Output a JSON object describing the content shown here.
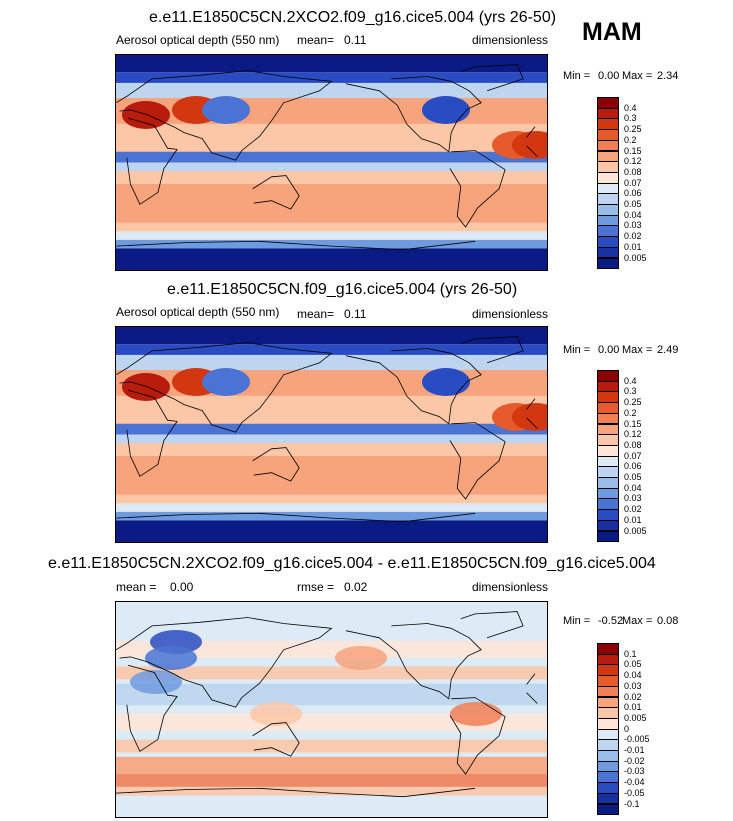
{
  "season": "MAM",
  "chart_data": [
    {
      "type": "heatmap",
      "title": "e.e11.E1850C5CN.2XCO2.f09_g16.cice5.004 (yrs 26-50)",
      "left_label": "Aerosol optical depth (550 nm)",
      "mean_label": "mean=",
      "mean_value": "0.11",
      "units": "dimensionless",
      "min_label": "Min =",
      "min_value": "0.00",
      "max_label": "Max =",
      "max_value": "2.34",
      "levels": [
        "0.4",
        "0.3",
        "0.25",
        "0.2",
        "0.15",
        "0.12",
        "0.08",
        "0.07",
        "0.06",
        "0.05",
        "0.04",
        "0.03",
        "0.02",
        "0.01",
        "0.005"
      ],
      "colors": [
        "#8b0000",
        "#b81c0c",
        "#d3370f",
        "#e65a2c",
        "#f07f55",
        "#f7a37c",
        "#fbc7a7",
        "#fde6d8",
        "#dcebf6",
        "#bdd5f0",
        "#98bde9",
        "#6e9be0",
        "#4a73d4",
        "#2a4cc2",
        "#1731a5",
        "#0a1a85"
      ]
    },
    {
      "type": "heatmap",
      "title": "e.e11.E1850C5CN.f09_g16.cice5.004 (yrs 26-50)",
      "left_label": "Aerosol optical depth (550 nm)",
      "mean_label": "mean=",
      "mean_value": "0.11",
      "units": "dimensionless",
      "min_label": "Min =",
      "min_value": "0.00",
      "max_label": "Max =",
      "max_value": "2.49",
      "levels": [
        "0.4",
        "0.3",
        "0.25",
        "0.2",
        "0.15",
        "0.12",
        "0.08",
        "0.07",
        "0.06",
        "0.05",
        "0.04",
        "0.03",
        "0.02",
        "0.01",
        "0.005"
      ],
      "colors": [
        "#8b0000",
        "#b81c0c",
        "#d3370f",
        "#e65a2c",
        "#f07f55",
        "#f7a37c",
        "#fbc7a7",
        "#fde6d8",
        "#dcebf6",
        "#bdd5f0",
        "#98bde9",
        "#6e9be0",
        "#4a73d4",
        "#2a4cc2",
        "#1731a5",
        "#0a1a85"
      ]
    },
    {
      "type": "heatmap",
      "title": "e.e11.E1850C5CN.2XCO2.f09_g16.cice5.004 - e.e11.E1850C5CN.f09_g16.cice5.004",
      "left_label": "mean =",
      "mean_value": "0.00",
      "rmse_label": "rmse =",
      "rmse_value": "0.02",
      "units": "dimensionless",
      "min_label": "Min =",
      "min_value": "-0.52",
      "max_label": "Max =",
      "max_value": "0.08",
      "levels": [
        "0.1",
        "0.05",
        "0.04",
        "0.03",
        "0.02",
        "0.01",
        "0.005",
        "0",
        "-0.005",
        "-0.01",
        "-0.02",
        "-0.03",
        "-0.04",
        "-0.05",
        "-0.1"
      ],
      "colors": [
        "#8b0000",
        "#b81c0c",
        "#d3370f",
        "#e65a2c",
        "#f07f55",
        "#f7a37c",
        "#fbc7a7",
        "#fde6d8",
        "#dcebf6",
        "#bdd5f0",
        "#98bde9",
        "#6e9be0",
        "#4a73d4",
        "#2a4cc2",
        "#1731a5",
        "#0a1a85"
      ]
    }
  ]
}
